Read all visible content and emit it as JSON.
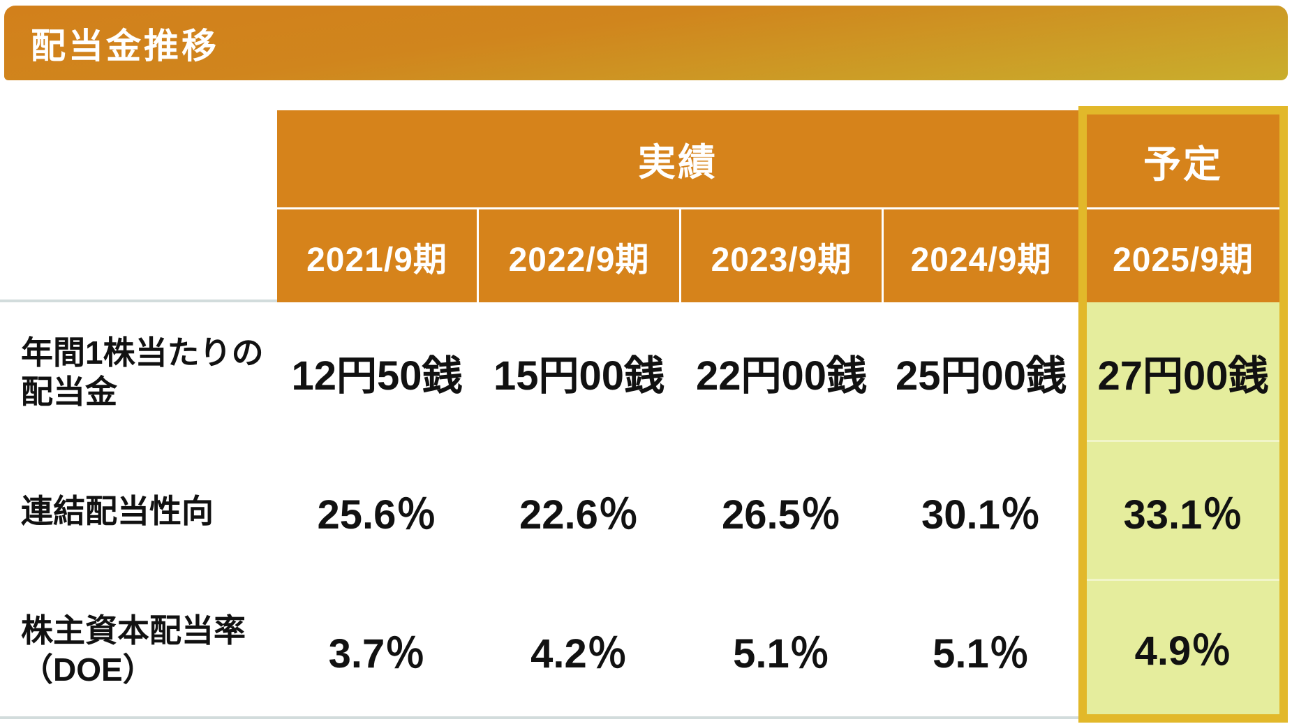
{
  "title": "配当金推移",
  "colors": {
    "header_orange": "#D6831B",
    "title_gradient_top": "#D2801B",
    "title_gradient_bottom": "#C9AE2D",
    "highlight_border_gold": "#E2B82A",
    "highlight_fill_yellow_green": "#E5ED9D",
    "rule_gray": "#D2DCDC",
    "text_black": "#111111",
    "text_white": "#FFFFFF"
  },
  "chart_data": {
    "type": "table",
    "title": "配当金推移",
    "group_headers": {
      "actual": "実績",
      "planned": "予定"
    },
    "columns": [
      "2021/9期",
      "2022/9期",
      "2023/9期",
      "2024/9期",
      "2025/9期"
    ],
    "rows": [
      {
        "label": "年間1株当たりの配当金",
        "label_lines": [
          "年間1株当たりの",
          "配当金"
        ],
        "values": [
          "12円50銭",
          "15円00銭",
          "22円00銭",
          "25円00銭",
          "27円00銭"
        ]
      },
      {
        "label": "連結配当性向",
        "label_lines": [
          "連結配当性向"
        ],
        "values": [
          "25.6％",
          "22.6％",
          "26.5％",
          "30.1％",
          "33.1％"
        ]
      },
      {
        "label": "株主資本配当率（DOE）",
        "label_lines": [
          "株主資本配当率",
          "（DOE）"
        ],
        "values": [
          "3.7％",
          "4.2％",
          "5.1％",
          "5.1％",
          "4.9％"
        ]
      }
    ],
    "layout_hints": {
      "highlighted_column": "2025/9期",
      "highlight_style": "gold border with yellow-green fill",
      "actual_span_columns": [
        "2021/9期",
        "2022/9期",
        "2023/9期",
        "2024/9期"
      ]
    }
  }
}
